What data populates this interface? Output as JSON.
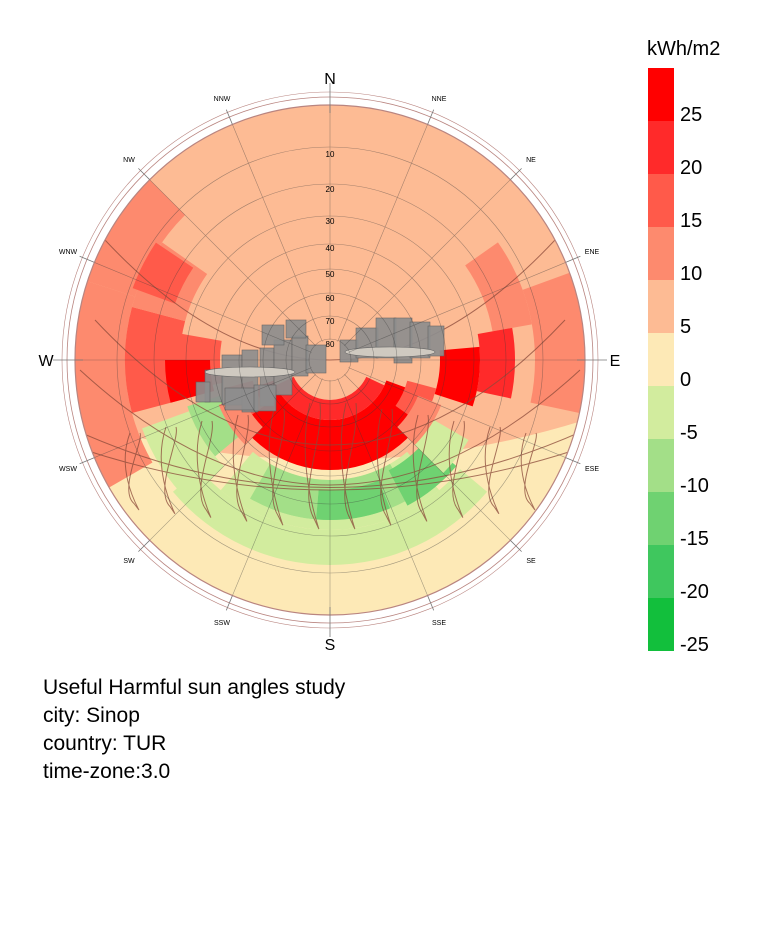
{
  "legend": {
    "unit": "kWh/m2",
    "ticks": [
      "25",
      "20",
      "15",
      "10",
      "5",
      "0",
      "-5",
      "-10",
      "-15",
      "-20",
      "-25"
    ],
    "bands": [
      {
        "color": "#ff0000"
      },
      {
        "color": "#ff2a2a"
      },
      {
        "color": "#ff5a4a"
      },
      {
        "color": "#fd8a6e"
      },
      {
        "color": "#fdbb94"
      },
      {
        "color": "#fde9b6"
      },
      {
        "color": "#d2ec9e"
      },
      {
        "color": "#a3df88"
      },
      {
        "color": "#6fd271"
      },
      {
        "color": "#3fc75e"
      },
      {
        "color": "#12bf3c"
      }
    ]
  },
  "compass": {
    "major": [
      "N",
      "E",
      "S",
      "W"
    ],
    "minor": [
      "NNE",
      "NE",
      "ENE",
      "ESE",
      "SE",
      "SSE",
      "SSW",
      "SW",
      "WSW",
      "WNW",
      "NW",
      "NNW"
    ]
  },
  "altitude_labels": [
    "10",
    "20",
    "30",
    "40",
    "50",
    "60",
    "70",
    "80"
  ],
  "caption": {
    "line1": "Useful Harmful sun angles study",
    "line2": "city: Sinop",
    "line3": "country: TUR",
    "line4": "time-zone:3.0"
  }
}
